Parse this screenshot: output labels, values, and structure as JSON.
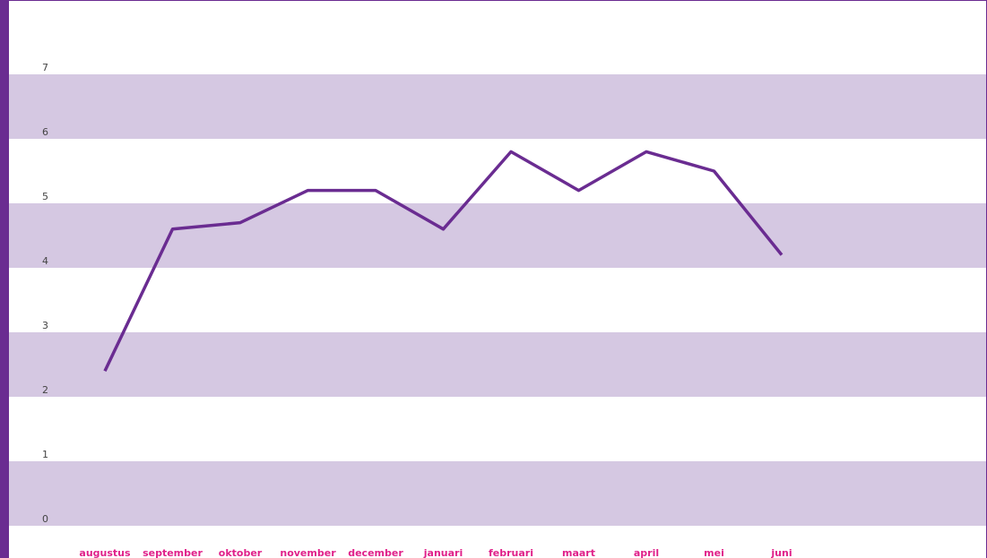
{
  "chart_data": {
    "type": "line",
    "categories": [
      "augustus",
      "september",
      "oktober",
      "november",
      "december",
      "januari",
      "februari",
      "maart",
      "april",
      "mei",
      "juni"
    ],
    "values": [
      2.4,
      4.6,
      4.7,
      5.2,
      5.2,
      4.6,
      5.8,
      5.2,
      5.8,
      5.5,
      4.2
    ],
    "color": "#6a2c91",
    "ylim": [
      0,
      7
    ],
    "yticks": [
      0,
      1,
      2,
      3,
      4,
      5,
      6,
      7
    ],
    "grid": true,
    "grid_color": "#d5c8e2",
    "label_color": "#e0218a"
  }
}
